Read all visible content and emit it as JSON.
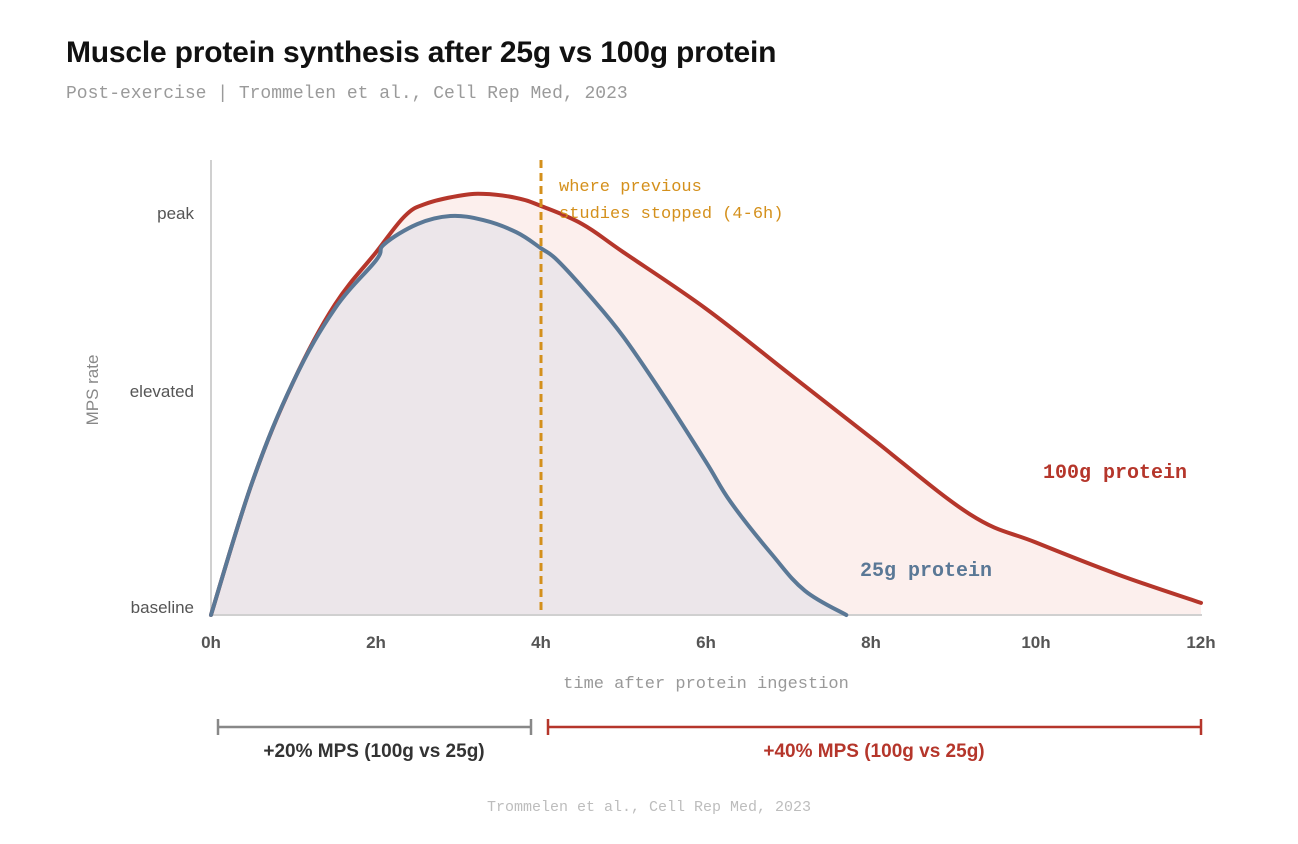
{
  "header": {
    "title": "Muscle protein synthesis after 25g vs 100g protein",
    "subtitle": "Post-exercise | Trommelen et al., Cell Rep Med, 2023"
  },
  "footer": {
    "source": "Trommelen et al., Cell Rep Med, 2023"
  },
  "colors": {
    "series_100g": "#b5362b",
    "series_25g": "#5a7896",
    "fill_100g": "#fcefed",
    "fill_25g": "#ece6ea",
    "annotation": "#d4901c",
    "bracket_left": "#888888",
    "bracket_right": "#b5362b",
    "axis": "#d0d0d0",
    "tick_text": "#555555"
  },
  "chart_data": {
    "type": "line",
    "title": "Muscle protein synthesis after 25g vs 100g protein",
    "subtitle": "Post-exercise | Trommelen et al., Cell Rep Med, 2023",
    "xlabel": "time after protein ingestion",
    "ylabel": "MPS rate",
    "x_unit": "h",
    "xlim": [
      0,
      12
    ],
    "ylim": [
      0,
      1
    ],
    "x_ticks": [
      0,
      2,
      4,
      6,
      8,
      10,
      12
    ],
    "x_tick_labels": [
      "0h",
      "2h",
      "4h",
      "6h",
      "8h",
      "10h",
      "12h"
    ],
    "y_ticks": [
      0,
      0.5,
      1
    ],
    "y_tick_labels": [
      "baseline",
      "elevated",
      "peak"
    ],
    "grid": false,
    "series": [
      {
        "name": "100g protein",
        "color": "#b5362b",
        "x": [
          0,
          0.5,
          1,
          1.5,
          2,
          2.35,
          2.6,
          3,
          3.3,
          3.7,
          4,
          4.5,
          5,
          6,
          7,
          8,
          9.2,
          10,
          11,
          12
        ],
        "y": [
          0,
          0.33,
          0.58,
          0.77,
          0.9,
          0.99,
          1.02,
          1.04,
          1.045,
          1.035,
          1.015,
          0.97,
          0.9,
          0.76,
          0.6,
          0.44,
          0.25,
          0.18,
          0.1,
          0.03
        ]
      },
      {
        "name": "25g protein",
        "color": "#5a7896",
        "x": [
          0,
          0.5,
          1,
          1.5,
          2,
          2.1,
          2.5,
          2.9,
          3.3,
          3.7,
          4,
          4.2,
          4.6,
          5,
          5.5,
          6,
          6.3,
          6.8,
          7.2,
          7.7
        ],
        "y": [
          0,
          0.33,
          0.58,
          0.76,
          0.88,
          0.92,
          0.97,
          0.99,
          0.98,
          0.95,
          0.91,
          0.88,
          0.79,
          0.69,
          0.54,
          0.38,
          0.28,
          0.15,
          0.06,
          0
        ]
      }
    ],
    "annotations": [
      {
        "type": "vline",
        "x": 4,
        "label_lines": [
          "where previous",
          "studies stopped (4-6h)"
        ]
      }
    ],
    "brackets": [
      {
        "x_start": 0,
        "x_end": 4,
        "label": "+20% MPS (100g vs 25g)"
      },
      {
        "x_start": 4,
        "x_end": 12,
        "label": "+40% MPS (100g vs 25g)"
      }
    ]
  }
}
